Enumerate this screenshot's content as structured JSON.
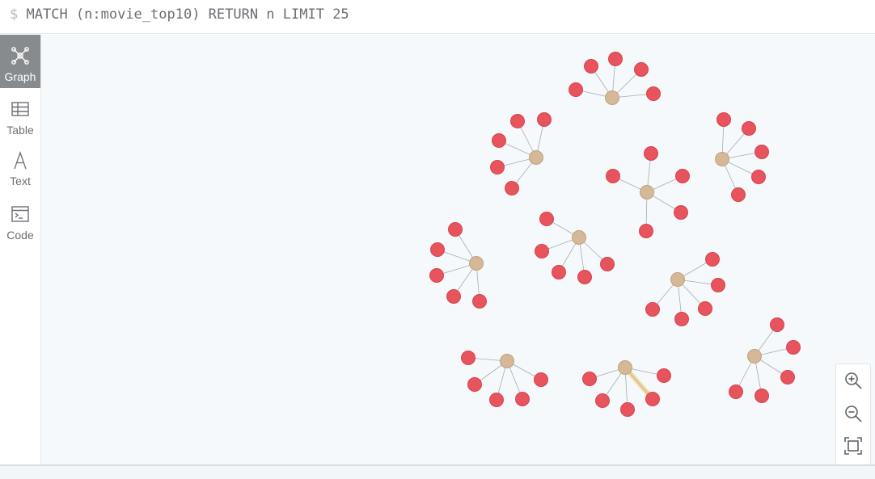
{
  "query": {
    "prompt": "$",
    "text": "MATCH (n:movie_top10) RETURN n LIMIT 25"
  },
  "sidebar": {
    "items": [
      {
        "label": "Graph",
        "icon": "graph-icon",
        "active": true
      },
      {
        "label": "Table",
        "icon": "table-icon",
        "active": false
      },
      {
        "label": "Text",
        "icon": "text-icon",
        "active": false
      },
      {
        "label": "Code",
        "icon": "code-icon",
        "active": false
      }
    ]
  },
  "zoom": {
    "in_icon": "zoom-in-icon",
    "out_icon": "zoom-out-icon",
    "fit_icon": "fit-screen-icon"
  },
  "colors": {
    "actor_node": "#e8545d",
    "movie_node": "#d4b897",
    "edge": "#a5abb0",
    "selected_edge": "#f4d89a",
    "active_tab": "#888b8e"
  }
}
